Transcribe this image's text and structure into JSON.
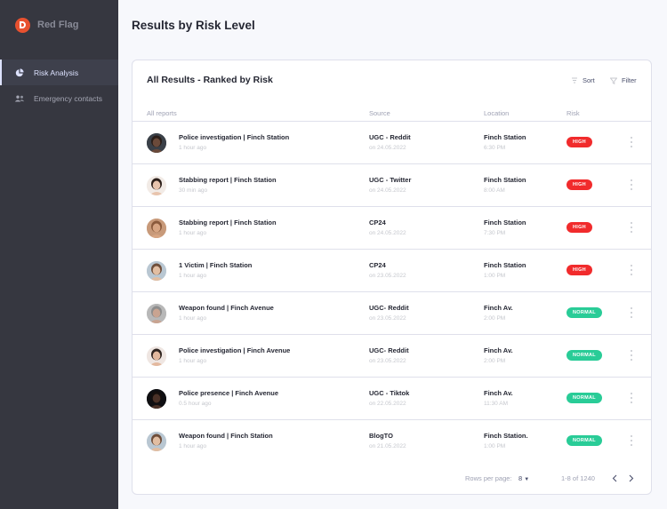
{
  "app": {
    "name": "Red Flag"
  },
  "nav": [
    {
      "label": "Risk Analysis",
      "icon": "pie-chart-icon",
      "active": true
    },
    {
      "label": "Emergency contacts",
      "icon": "people-icon",
      "active": false
    }
  ],
  "page": {
    "title": "Results by Risk Level"
  },
  "card": {
    "title": "All Results - Ranked by Risk",
    "sort_label": "Sort",
    "filter_label": "Filter",
    "columns": [
      "All reports",
      "Source",
      "Location",
      "Risk"
    ]
  },
  "rows": [
    {
      "title": "Police investigation | Finch Station",
      "age": "1 hour ago",
      "source": "UGC - Reddit",
      "date": "on 24.05.2022",
      "location": "Finch Station",
      "time": "6:30 PM",
      "risk": "HIGH"
    },
    {
      "title": "Stabbing report | Finch Station",
      "age": "30 min ago",
      "source": "UGC - Twitter",
      "date": "on 24.05.2022",
      "location": "Finch Station",
      "time": "8:00 AM",
      "risk": "HIGH"
    },
    {
      "title": "Stabbing report | Finch Station",
      "age": "1 hour ago",
      "source": "CP24",
      "date": "on 24.05.2022",
      "location": "Finch Station",
      "time": "7:30 PM",
      "risk": "HIGH"
    },
    {
      "title": "1 Victim | Finch Station",
      "age": "1 hour ago",
      "source": "CP24",
      "date": "on 23.05.2022",
      "location": "Finch Station",
      "time": "1:00 PM",
      "risk": "HIGH"
    },
    {
      "title": "Weapon found | Finch Avenue",
      "age": "1 hour ago",
      "source": "UGC- Reddit",
      "date": "on 23.05.2022",
      "location": "Finch Av.",
      "time": "2:00 PM",
      "risk": "NORMAL"
    },
    {
      "title": "Police investigation | Finch Avenue",
      "age": "1 hour ago",
      "source": "UGC- Reddit",
      "date": "on 23.05.2022",
      "location": "Finch Av.",
      "time": "2:00 PM",
      "risk": "NORMAL"
    },
    {
      "title": "Police presence | Finch Avenue",
      "age": "0.5 hour ago",
      "source": "UGC - Tiktok",
      "date": "on 22.05.2022",
      "location": "Finch Av.",
      "time": "11:30 AM",
      "risk": "NORMAL"
    },
    {
      "title": "Weapon found | Finch Station",
      "age": "1 hour ago",
      "source": "BlogTO",
      "date": "on 21.05.2022",
      "location": "Finch Station.",
      "time": "1:00 PM",
      "risk": "NORMAL"
    }
  ],
  "pagination": {
    "rows_per_page_label": "Rows per page:",
    "rows_per_page_value": "8",
    "range_text": "1-8 of 1240"
  },
  "colors": {
    "high": "#f12b2c",
    "normal": "#29cc97",
    "brand": "#e8512f",
    "sidebar": "#363740"
  }
}
